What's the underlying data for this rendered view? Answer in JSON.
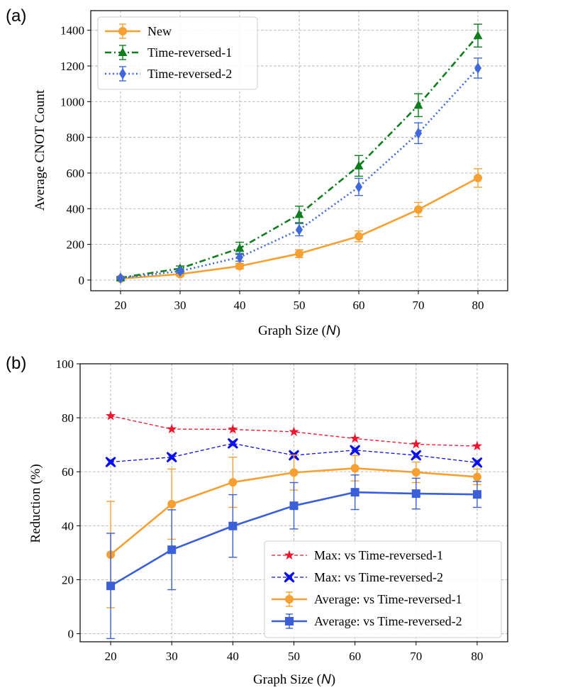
{
  "chart_data": [
    {
      "panel_label": "(a)",
      "type": "line",
      "xlabel_prefix": "Graph Size (",
      "xlabel_var": "N",
      "xlabel_suffix": ")",
      "ylabel": "Average CNOT Count",
      "x": [
        20,
        30,
        40,
        50,
        60,
        70,
        80
      ],
      "xlim": [
        15,
        85
      ],
      "ylim": [
        -60,
        1510
      ],
      "yticks": [
        0,
        200,
        400,
        600,
        800,
        1000,
        1200,
        1400
      ],
      "grid": true,
      "legend_position": "upper-left",
      "series": [
        {
          "name": "New",
          "color": "#f7a032",
          "style": "solid",
          "marker": "circle",
          "values": [
            8,
            33,
            78,
            148,
            245,
            395,
            572
          ],
          "errors": [
            4,
            10,
            15,
            22,
            30,
            40,
            52
          ]
        },
        {
          "name": "Time-reversed-1",
          "color": "#0e7d1e",
          "style": "dashdot",
          "marker": "triangle",
          "values": [
            13,
            65,
            178,
            368,
            640,
            980,
            1370
          ],
          "errors": [
            6,
            14,
            34,
            46,
            58,
            64,
            64
          ]
        },
        {
          "name": "Time-reversed-2",
          "color": "#3f68d8",
          "style": "dotted",
          "marker": "diamond",
          "values": [
            11,
            50,
            128,
            282,
            522,
            823,
            1188
          ],
          "errors": [
            5,
            12,
            22,
            34,
            48,
            58,
            56
          ]
        }
      ]
    },
    {
      "panel_label": "(b)",
      "type": "line",
      "xlabel_prefix": "Graph Size (",
      "xlabel_var": "N",
      "xlabel_suffix": ")",
      "ylabel": "Reduction (%)",
      "x": [
        20,
        30,
        40,
        50,
        60,
        70,
        80
      ],
      "xlim": [
        15,
        85
      ],
      "ylim": [
        -3,
        100
      ],
      "yticks": [
        0,
        20,
        40,
        60,
        80,
        100
      ],
      "grid": true,
      "legend_position": "lower-right",
      "series": [
        {
          "name": "Max: vs Time-reversed-1",
          "color": "#f0142d",
          "style": "dashed",
          "marker": "star",
          "values": [
            80.7,
            75.8,
            75.7,
            74.8,
            72.3,
            70.2,
            69.5
          ]
        },
        {
          "name": "Max: vs Time-reversed-2",
          "color": "#0b10e8",
          "style": "dashed",
          "marker": "x",
          "values": [
            63.6,
            65.4,
            70.5,
            66.1,
            68.0,
            66.1,
            63.4
          ]
        },
        {
          "name": "Average: vs Time-reversed-1",
          "color": "#f7a032",
          "style": "solid",
          "marker": "circle",
          "values": [
            29.3,
            48.0,
            56.1,
            59.7,
            61.3,
            59.8,
            58.1
          ],
          "errors": [
            19.7,
            13.0,
            9.3,
            6.5,
            4.7,
            3.8,
            2.9
          ]
        },
        {
          "name": "Average: vs Time-reversed-2",
          "color": "#3a5fd6",
          "style": "solid",
          "marker": "square",
          "values": [
            17.7,
            31.1,
            39.9,
            47.4,
            52.4,
            51.9,
            51.6
          ],
          "errors": [
            19.5,
            14.8,
            11.6,
            8.6,
            6.4,
            5.7,
            4.8
          ]
        }
      ]
    }
  ]
}
